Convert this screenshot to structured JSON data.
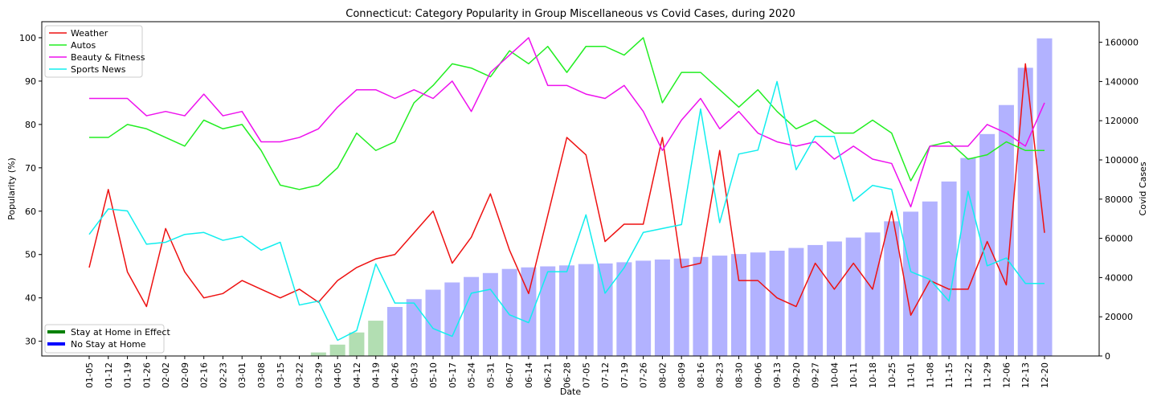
{
  "chart_data": {
    "type": "line",
    "title": "Connecticut: Category Popularity in Group Miscellaneous vs Covid Cases, during 2020",
    "xlabel": "Date",
    "ylabel": "Popularity (%)",
    "y2label": "Covid Cases",
    "ylim": [
      26.6,
      103.7
    ],
    "y2lim": [
      0,
      170500
    ],
    "yticks": [
      30,
      40,
      50,
      60,
      70,
      80,
      90,
      100
    ],
    "y2ticks": [
      0,
      20000,
      40000,
      60000,
      80000,
      100000,
      120000,
      140000,
      160000
    ],
    "categories": [
      "01-05",
      "01-12",
      "01-19",
      "01-26",
      "02-02",
      "02-09",
      "02-16",
      "02-23",
      "03-01",
      "03-08",
      "03-15",
      "03-22",
      "03-29",
      "04-05",
      "04-12",
      "04-19",
      "04-26",
      "05-03",
      "05-10",
      "05-17",
      "05-24",
      "05-31",
      "06-07",
      "06-14",
      "06-21",
      "06-28",
      "07-05",
      "07-12",
      "07-19",
      "07-26",
      "08-02",
      "08-09",
      "08-16",
      "08-23",
      "08-30",
      "09-06",
      "09-13",
      "09-20",
      "09-27",
      "10-04",
      "10-11",
      "10-18",
      "10-25",
      "11-01",
      "11-08",
      "11-15",
      "11-22",
      "11-29",
      "12-06",
      "12-13",
      "12-20"
    ],
    "series": [
      {
        "name": "Weather",
        "color": "#ee1111",
        "values": [
          47,
          65,
          46,
          38,
          56,
          46,
          40,
          41,
          44,
          42,
          40,
          42,
          39,
          44,
          47,
          49,
          50,
          55,
          60,
          48,
          54,
          64,
          51,
          41,
          59,
          77,
          73,
          53,
          57,
          57,
          77,
          47,
          48,
          74,
          44,
          44,
          40,
          38,
          48,
          42,
          48,
          42,
          60,
          36,
          44,
          42,
          42,
          53,
          43,
          94,
          55
        ]
      },
      {
        "name": "Autos",
        "color": "#22ee22",
        "values": [
          77,
          77,
          80,
          79,
          77,
          75,
          81,
          79,
          80,
          74,
          66,
          65,
          66,
          70,
          78,
          74,
          76,
          85,
          89,
          94,
          93,
          91,
          97,
          94,
          98,
          92,
          98,
          98,
          96,
          100,
          85,
          92,
          92,
          88,
          84,
          88,
          83,
          79,
          81,
          78,
          78,
          81,
          78,
          67,
          75,
          76,
          72,
          73,
          76,
          74,
          74
        ]
      },
      {
        "name": "Beauty & Fitness",
        "color": "#ee11ee",
        "values": [
          86,
          86,
          86,
          82,
          83,
          82,
          87,
          82,
          83,
          76,
          76,
          77,
          79,
          84,
          88,
          88,
          86,
          88,
          86,
          90,
          83,
          92,
          96,
          100,
          89,
          89,
          87,
          86,
          89,
          83,
          74,
          81,
          86,
          79,
          83,
          78,
          76,
          75,
          76,
          72,
          75,
          72,
          71,
          61,
          75,
          75,
          75,
          80,
          78,
          75,
          85
        ]
      },
      {
        "name": "Sports News",
        "color": "#11eeee",
        "values": [
          62,
          75,
          74,
          57,
          58,
          62,
          63,
          59,
          61,
          54,
          58,
          26,
          28,
          8,
          13,
          47,
          27,
          27,
          14,
          10,
          32,
          34,
          21,
          17,
          43,
          43,
          72,
          32,
          45,
          63,
          65,
          67,
          126,
          68,
          103,
          105,
          140,
          95,
          112,
          112,
          79,
          87,
          85,
          43,
          39,
          28,
          84,
          46,
          50,
          37,
          37
        ]
      }
    ],
    "series_axis": [
      "primary",
      "primary",
      "primary",
      "secondary"
    ],
    "bars": {
      "name": "Covid Cases",
      "values": [
        0,
        0,
        0,
        0,
        0,
        0,
        0,
        0,
        0,
        0,
        0,
        0,
        1800,
        5800,
        12000,
        18000,
        25000,
        29000,
        33800,
        37500,
        40300,
        42300,
        44400,
        45200,
        45700,
        46200,
        46900,
        47200,
        47800,
        48600,
        49200,
        49700,
        50500,
        51200,
        52000,
        52800,
        53700,
        55100,
        56600,
        58400,
        60400,
        63000,
        68700,
        73600,
        78800,
        89000,
        101000,
        113200,
        128000,
        147000,
        162000
      ],
      "colors_by_phase": {
        "stay_at_home": "#b2deb2",
        "no_stay_at_home": "#b2b2ff"
      },
      "phase": [
        "none",
        "none",
        "none",
        "none",
        "none",
        "none",
        "none",
        "none",
        "none",
        "none",
        "none",
        "none",
        "stay",
        "stay",
        "stay",
        "stay",
        "free",
        "free",
        "free",
        "free",
        "free",
        "free",
        "free",
        "free",
        "free",
        "free",
        "free",
        "free",
        "free",
        "free",
        "free",
        "free",
        "free",
        "free",
        "free",
        "free",
        "free",
        "free",
        "free",
        "free",
        "free",
        "free",
        "free",
        "free",
        "free",
        "free",
        "free",
        "free",
        "free",
        "free",
        "free"
      ]
    },
    "legend_top": {
      "placement": "top-left",
      "items": [
        "Weather",
        "Autos",
        "Beauty & Fitness",
        "Sports News"
      ]
    },
    "legend_bottom": {
      "placement": "bottom-left",
      "items": [
        {
          "label": "Stay at Home in Effect",
          "color": "#008000"
        },
        {
          "label": "No Stay at Home",
          "color": "#0000ff"
        }
      ]
    },
    "grid": false
  }
}
